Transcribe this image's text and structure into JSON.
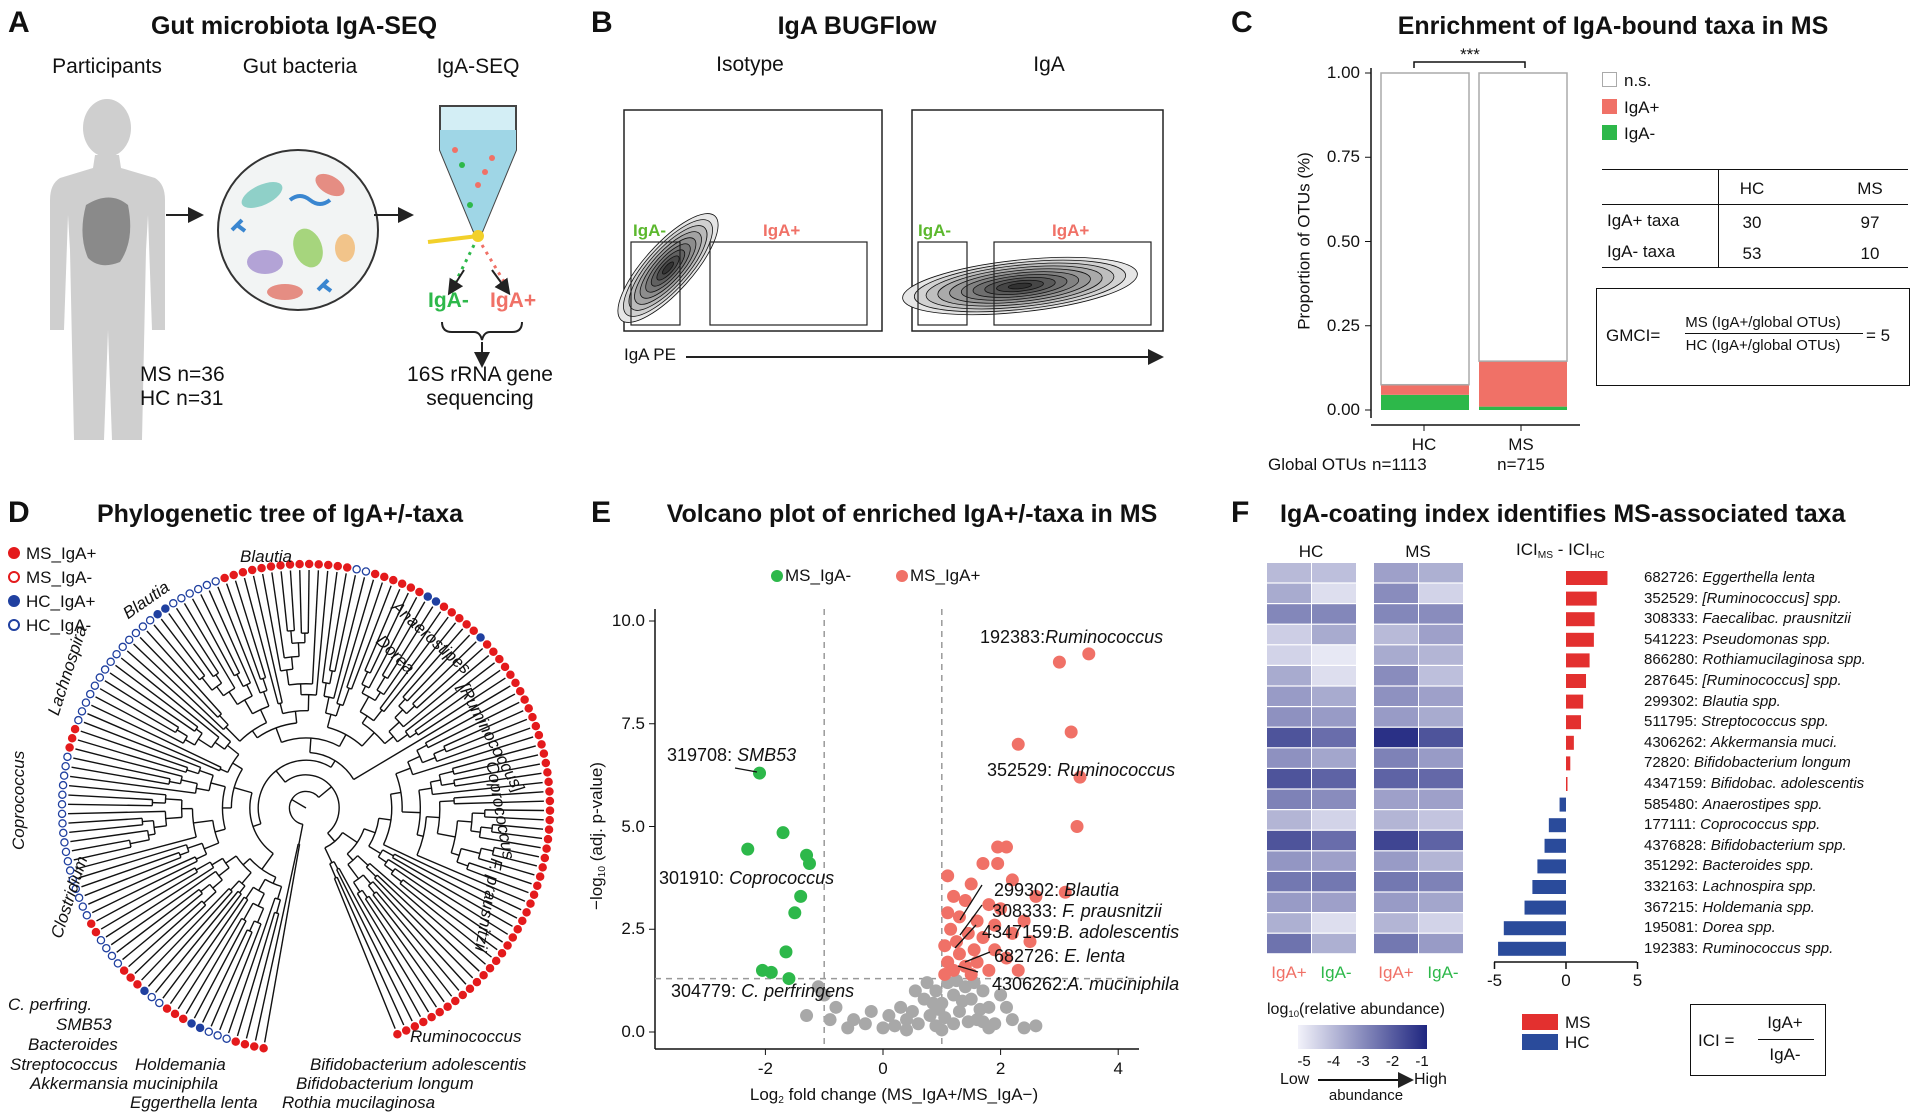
{
  "colors": {
    "ms_iga_pos": "#e41a1c",
    "hc": "#2040a0",
    "green": "#2db84a",
    "salmon": "#f07167",
    "gray": "#a8a8a8",
    "ici_red": "#e3302f",
    "ici_blue": "#2a4b9b",
    "heat_low": "#f2f2fa",
    "heat_high": "#1f2680"
  },
  "panel_a": {
    "letter": "A",
    "title": "Gut microbiota IgA-SEQ",
    "col1": "Participants",
    "col2": "Gut bacteria",
    "col3": "IgA-SEQ",
    "ms_n": "MS n=36",
    "hc_n": "HC n=31",
    "iga_neg": "IgA-",
    "iga_pos": "IgA+",
    "seq_line1": "16S rRNA gene",
    "seq_line2": "sequencing"
  },
  "panel_b": {
    "letter": "B",
    "title": "IgA BUGFlow",
    "isotype": "Isotype",
    "iga": "IgA",
    "gate_neg": "IgA-",
    "gate_pos": "IgA+",
    "axis_label": "IgA PE"
  },
  "panel_c": {
    "letter": "C",
    "title": "Enrichment of IgA-bound taxa in MS",
    "significance": "***",
    "ylabel": "Proportion of OTUs (%)",
    "legend": [
      "n.s.",
      "IgA+",
      "IgA-"
    ],
    "global_otus_label": "Global OTUs",
    "hc_n": "n=1113",
    "ms_n": "n=715",
    "table": {
      "headers": [
        "HC",
        "MS"
      ],
      "rows": [
        [
          "IgA+ taxa",
          "30",
          "97"
        ],
        [
          "IgA- taxa",
          "53",
          "10"
        ]
      ]
    },
    "gmci": {
      "lhs": "GMCI=",
      "num": "MS (IgA+/global OTUs)",
      "den": "HC (IgA+/global OTUs)",
      "rhs": "= 5"
    }
  },
  "panel_d": {
    "letter": "D",
    "title": "Phylogenetic tree of IgA+/-taxa",
    "legend": [
      "MS_IgA+",
      "MS_IgA-",
      "HC_IgA+",
      "HC_IgA-"
    ],
    "clades": [
      "Blautia",
      "Blautia",
      "Anaerostipes",
      "Dorea",
      "[Ruminococcus]",
      "Coprococcus",
      "F. prausnitzii",
      "Lachnospira",
      "Coprococcus",
      "Clostridium",
      "C. perfring.",
      "SMB53",
      "Bacteroides",
      "Streptococcus",
      "Holdemania",
      "Akkermansia muciniphila",
      "Eggerthella lenta",
      "Rothia mucilaginosa",
      "Bifidobacterium longum",
      "Bifidobacterium adolescentis",
      "Ruminococcus"
    ],
    "tips": [
      [
        "MS_IgA+",
        4
      ],
      [
        "HC_IgA-",
        3
      ],
      [
        "HC_IgA+",
        2
      ],
      [
        "MS_IgA+",
        3
      ],
      [
        "HC_IgA-",
        2
      ],
      [
        "HC_IgA+",
        1
      ],
      [
        "MS_IgA+",
        3
      ],
      [
        "HC_IgA-",
        4
      ],
      [
        "MS_IgA+",
        2
      ],
      [
        "HC_IgA-",
        18
      ],
      [
        "MS_IgA+",
        3
      ],
      [
        "HC_IgA-",
        14
      ],
      [
        "HC_IgA+",
        2
      ],
      [
        "HC_IgA-",
        6
      ],
      [
        "MS_IgA+",
        14
      ],
      [
        "HC_IgA-",
        2
      ],
      [
        "MS_IgA+",
        6
      ],
      [
        "HC_IgA+",
        2
      ],
      [
        "MS_IgA+",
        5
      ],
      [
        "HC_IgA+",
        1
      ],
      [
        "MS_IgA+",
        50
      ]
    ]
  },
  "panel_e": {
    "letter": "E",
    "title": "Volcano plot of enriched IgA+/-taxa in MS",
    "legend": [
      "MS_IgA-",
      "MS_IgA+"
    ],
    "ylabel": {
      "pre": "−log",
      "sub": "10",
      "post": " (adj. p-value)"
    },
    "xlabel": {
      "pre": "Log",
      "sub": "2",
      "post": " fold change (MS_IgA+/MS_IgA−)"
    }
  },
  "panel_f": {
    "letter": "F",
    "title": "IgA-coating index identifies MS-associated taxa",
    "groups": [
      "HC",
      "MS"
    ],
    "cols": [
      "IgA+",
      "IgA-"
    ],
    "bar_title": {
      "a": "ICI",
      "a_sub": "MS",
      "b": " - ICI",
      "b_sub": "HC"
    },
    "colorbar": {
      "pre": "log",
      "sub": "10",
      "post": "(relative abundance)",
      "ticks": [
        "-5",
        "-4",
        "-3",
        "-2",
        "-1"
      ],
      "low": "Low",
      "mid": "abundance",
      "high": "High"
    },
    "bar_legend": [
      "MS",
      "HC"
    ],
    "ici_formula": {
      "lhs": "ICI =",
      "num": "IgA+",
      "den": "IgA-"
    }
  },
  "chart_data": [
    {
      "id": "C",
      "type": "bar",
      "stacked": true,
      "title": "Enrichment of IgA-bound taxa in MS",
      "ylabel": "Proportion of OTUs (%)",
      "categories": [
        "HC",
        "MS"
      ],
      "series": [
        {
          "name": "IgA-",
          "values": [
            0.045,
            0.01
          ]
        },
        {
          "name": "IgA+",
          "values": [
            0.03,
            0.135
          ]
        },
        {
          "name": "n.s.",
          "values": [
            0.925,
            0.855
          ]
        }
      ],
      "ylim": [
        0,
        1
      ],
      "yticks": [
        "0.00",
        "0.25",
        "0.50",
        "0.75",
        "1.00"
      ],
      "ytick_values": [
        0,
        0.25,
        0.5,
        0.75,
        1
      ]
    },
    {
      "id": "E",
      "type": "scatter",
      "title": "Volcano plot of enriched IgA+/-taxa in MS",
      "xlim": [
        -3.88,
        4.35
      ],
      "ylim": [
        -0.4,
        10.3
      ],
      "xticks": [
        "-2",
        "0",
        "2",
        "4"
      ],
      "xtick_values": [
        -2,
        0,
        2,
        4
      ],
      "yticks": [
        "0.0",
        "2.5",
        "5.0",
        "7.5",
        "10.0"
      ],
      "ytick_values": [
        0,
        2.5,
        5,
        7.5,
        10
      ],
      "thresholds": {
        "x": [
          -1,
          1
        ],
        "y": 1.3
      },
      "series": [
        {
          "name": "MS_IgA-",
          "points": [
            [
              -2.1,
              6.3
            ],
            [
              -1.7,
              4.85
            ],
            [
              -2.3,
              4.45
            ],
            [
              -1.3,
              4.3
            ],
            [
              -1.25,
              4.1
            ],
            [
              -1.4,
              3.3
            ],
            [
              -1.5,
              2.9
            ],
            [
              -1.65,
              1.95
            ],
            [
              -1.6,
              1.3
            ],
            [
              -1.9,
              1.45
            ],
            [
              -2.05,
              1.5
            ]
          ]
        },
        {
          "name": "MS_IgA+",
          "points": [
            [
              3.5,
              9.2
            ],
            [
              3.0,
              9.0
            ],
            [
              3.2,
              7.3
            ],
            [
              2.3,
              7.0
            ],
            [
              3.35,
              6.2
            ],
            [
              3.3,
              5.0
            ],
            [
              2.1,
              4.5
            ],
            [
              1.95,
              4.5
            ],
            [
              1.7,
              4.1
            ],
            [
              1.95,
              4.1
            ],
            [
              1.1,
              3.8
            ],
            [
              2.2,
              3.7
            ],
            [
              1.5,
              3.6
            ],
            [
              3.1,
              3.4
            ],
            [
              2.6,
              3.3
            ],
            [
              1.2,
              3.3
            ],
            [
              1.4,
              3.2
            ],
            [
              1.8,
              3.1
            ],
            [
              2.0,
              3.0
            ],
            [
              1.1,
              2.9
            ],
            [
              1.3,
              2.8
            ],
            [
              1.6,
              2.7
            ],
            [
              2.4,
              2.7
            ],
            [
              1.9,
              2.6
            ],
            [
              1.15,
              2.5
            ],
            [
              1.45,
              2.4
            ],
            [
              2.2,
              2.4
            ],
            [
              1.7,
              2.3
            ],
            [
              1.25,
              2.2
            ],
            [
              2.5,
              2.2
            ],
            [
              1.05,
              2.1
            ],
            [
              1.55,
              2.0
            ],
            [
              1.9,
              2.0
            ],
            [
              1.3,
              1.9
            ],
            [
              2.1,
              1.8
            ],
            [
              1.1,
              1.7
            ],
            [
              1.6,
              1.7
            ],
            [
              1.4,
              1.6
            ],
            [
              1.8,
              1.5
            ],
            [
              1.2,
              1.5
            ],
            [
              2.3,
              1.5
            ],
            [
              1.05,
              1.4
            ],
            [
              1.5,
              1.4
            ]
          ]
        },
        {
          "name": "n.s.",
          "points": [
            [
              -1.1,
              1.1
            ],
            [
              -1.0,
              0.9
            ],
            [
              -0.8,
              0.6
            ],
            [
              -1.3,
              0.4
            ],
            [
              -0.5,
              0.3
            ],
            [
              -0.3,
              0.2
            ],
            [
              0,
              0.1
            ],
            [
              0.2,
              0.15
            ],
            [
              0.4,
              0.3
            ],
            [
              0.5,
              0.5
            ],
            [
              0.6,
              0.2
            ],
            [
              0.7,
              0.8
            ],
            [
              0.8,
              0.4
            ],
            [
              0.9,
              1.0
            ],
            [
              1.0,
              0.7
            ],
            [
              1.1,
              1.2
            ],
            [
              1.2,
              0.9
            ],
            [
              1.3,
              0.5
            ],
            [
              1.4,
              1.1
            ],
            [
              1.5,
              0.8
            ],
            [
              1.6,
              0.3
            ],
            [
              1.7,
              1.0
            ],
            [
              1.8,
              0.6
            ],
            [
              1.9,
              0.2
            ],
            [
              2.0,
              0.9
            ],
            [
              2.2,
              0.3
            ],
            [
              2.4,
              0.1
            ],
            [
              2.6,
              0.15
            ],
            [
              0.3,
              0.6
            ],
            [
              0.1,
              0.4
            ],
            [
              -0.2,
              0.5
            ],
            [
              0.9,
              0.15
            ],
            [
              1.2,
              0.2
            ],
            [
              0.75,
              1.2
            ],
            [
              1.05,
              0.35
            ],
            [
              1.35,
              0.75
            ],
            [
              0.55,
              1.0
            ],
            [
              0.95,
              0.55
            ],
            [
              1.65,
              0.55
            ],
            [
              -0.6,
              0.1
            ],
            [
              1.8,
              0.1
            ],
            [
              1.45,
              0.25
            ],
            [
              0.85,
              0.7
            ],
            [
              1.25,
              1.25
            ],
            [
              1.55,
              1.2
            ],
            [
              2.1,
              0.6
            ],
            [
              -0.9,
              0.3
            ],
            [
              0.4,
              0.05
            ],
            [
              1.0,
              0.05
            ],
            [
              1.7,
              0.25
            ]
          ]
        }
      ],
      "annotations": [
        {
          "id": "192383:",
          "name": "Ruminococcus"
        },
        {
          "id": "352529: ",
          "name": "Ruminococcus"
        },
        {
          "id": "319708: ",
          "name": "SMB53"
        },
        {
          "id": "301910: ",
          "name": "Coprococcus"
        },
        {
          "id": "304779: ",
          "name": "C. perfringens"
        },
        {
          "id": "299302: ",
          "name": "Blautia"
        },
        {
          "id": "308333: ",
          "name": "F. prausnitzii"
        },
        {
          "id": "4347159:",
          "name": "B. adolescentis"
        },
        {
          "id": "682726: ",
          "name": "E. lenta"
        },
        {
          "id": "4306262:",
          "name": "A. muciniphila"
        }
      ]
    },
    {
      "id": "F_heatmap",
      "type": "heatmap",
      "columns": [
        "HC IgA+",
        "HC IgA-",
        "MS IgA+",
        "MS IgA-"
      ],
      "range": [
        -5,
        -1
      ],
      "values": [
        [
          -3.9,
          -4.0,
          -3.4,
          -3.7
        ],
        [
          -3.6,
          -4.6,
          -3.0,
          -4.4
        ],
        [
          -2.9,
          -2.9,
          -2.9,
          -3.0
        ],
        [
          -4.3,
          -3.6,
          -3.9,
          -3.4
        ],
        [
          -4.4,
          -4.8,
          -3.6,
          -3.8
        ],
        [
          -3.6,
          -4.6,
          -3.0,
          -4.0
        ],
        [
          -3.3,
          -3.6,
          -3.1,
          -3.4
        ],
        [
          -3.1,
          -3.3,
          -3.3,
          -3.6
        ],
        [
          -1.9,
          -2.4,
          -1.2,
          -1.9
        ],
        [
          -3.1,
          -3.5,
          -2.8,
          -3.3
        ],
        [
          -1.9,
          -2.2,
          -2.2,
          -2.3
        ],
        [
          -2.8,
          -3.0,
          -3.4,
          -3.4
        ],
        [
          -3.8,
          -4.4,
          -3.8,
          -4.1
        ],
        [
          -1.9,
          -2.4,
          -1.6,
          -2.2
        ],
        [
          -3.2,
          -3.4,
          -3.3,
          -3.8
        ],
        [
          -2.6,
          -2.6,
          -2.6,
          -2.8
        ],
        [
          -3.3,
          -3.4,
          -3.3,
          -3.5
        ],
        [
          -3.7,
          -4.6,
          -3.8,
          -4.4
        ],
        [
          -2.5,
          -3.7,
          -2.6,
          -3.3
        ]
      ]
    },
    {
      "id": "F_bar",
      "type": "bar",
      "orientation": "horizontal",
      "xlabel": "ICI_MS - ICI_HC",
      "xlim": [
        -5,
        5
      ],
      "xticks": [
        "-5",
        "0",
        "5"
      ],
      "xtick_values": [
        -5,
        0,
        5
      ],
      "rows": [
        {
          "otu": "682726: ",
          "taxon": "Eggerthella lenta",
          "value": 2.9
        },
        {
          "otu": "352529: ",
          "taxon": "[Ruminococcus] spp.",
          "value": 2.15
        },
        {
          "otu": "308333: ",
          "taxon": "Faecalibac. prausnitzii",
          "value": 2.0
        },
        {
          "otu": "541223: ",
          "taxon": "Pseudomonas spp.",
          "value": 1.95
        },
        {
          "otu": "866280: ",
          "taxon": "Rothiamucilaginosa spp.",
          "value": 1.65
        },
        {
          "otu": "287645: ",
          "taxon": "[Ruminococcus] spp.",
          "value": 1.4
        },
        {
          "otu": "299302: ",
          "taxon": "Blautia spp.",
          "value": 1.2
        },
        {
          "otu": "511795: ",
          "taxon": "Streptococcus spp.",
          "value": 1.05
        },
        {
          "otu": "4306262: ",
          "taxon": "Akkermansia muci.",
          "value": 0.55
        },
        {
          "otu": "72820: ",
          "taxon": "Bifidobacterium longum",
          "value": 0.3
        },
        {
          "otu": "4347159: ",
          "taxon": "Bifidobac. adolescentis",
          "value": 0.1
        },
        {
          "otu": "585480: ",
          "taxon": "Anaerostipes spp.",
          "value": -0.45
        },
        {
          "otu": "177111: ",
          "taxon": "Coprococcus spp.",
          "value": -1.2
        },
        {
          "otu": "4376828: ",
          "taxon": "Bifidobacterium spp.",
          "value": -1.5
        },
        {
          "otu": "351292: ",
          "taxon": "Bacteroides spp.",
          "value": -2.0
        },
        {
          "otu": "332163: ",
          "taxon": "Lachnospira spp.",
          "value": -2.35
        },
        {
          "otu": "367215: ",
          "taxon": "Holdemania spp.",
          "value": -2.9
        },
        {
          "otu": "195081: ",
          "taxon": "Dorea spp.",
          "value": -4.35
        },
        {
          "otu": "192383: ",
          "taxon": "Ruminococcus spp.",
          "value": -4.75
        }
      ]
    }
  ]
}
